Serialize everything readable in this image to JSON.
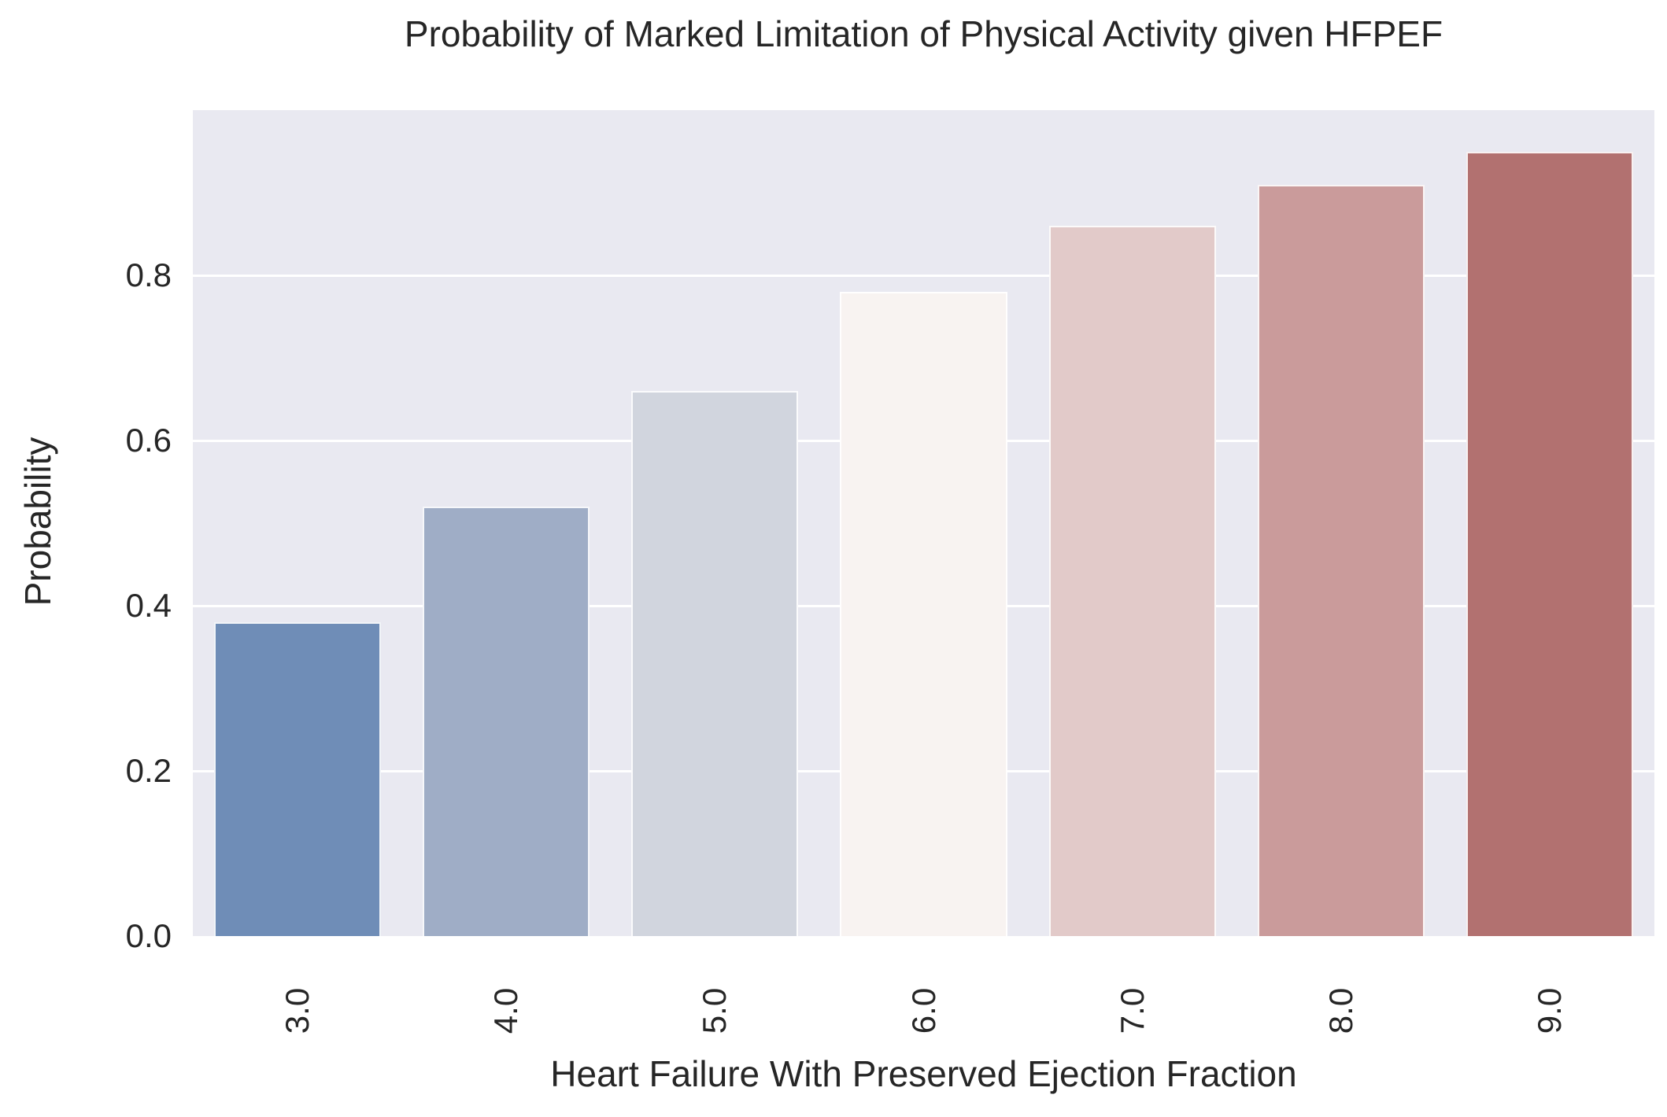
{
  "chart_data": {
    "type": "bar",
    "title": "Probability of Marked Limitation of Physical Activity given HFPEF",
    "xlabel": "Heart Failure With Preserved Ejection Fraction",
    "ylabel": "Probability",
    "categories": [
      "3.0",
      "4.0",
      "5.0",
      "6.0",
      "7.0",
      "8.0",
      "9.0"
    ],
    "values": [
      0.38,
      0.52,
      0.66,
      0.78,
      0.86,
      0.91,
      0.95
    ],
    "bar_colors": [
      "#6f8db7",
      "#9fadc6",
      "#d1d5de",
      "#f8f3f1",
      "#e2cac9",
      "#ca9b9b",
      "#b27170"
    ],
    "ylim": [
      0.0,
      1.0
    ],
    "ytick_labels": [
      "0.0",
      "0.2",
      "0.4",
      "0.6",
      "0.8"
    ],
    "ytick_values": [
      0.0,
      0.2,
      0.4,
      0.6,
      0.8
    ],
    "x_tick_rotation_deg": 90,
    "grid": "horizontal white gridlines",
    "legend": "none",
    "colors": {
      "plot_background": "#e9e9f1",
      "figure_background": "#ffffff",
      "grid_color": "#ffffff",
      "text_color": "#262626"
    }
  }
}
